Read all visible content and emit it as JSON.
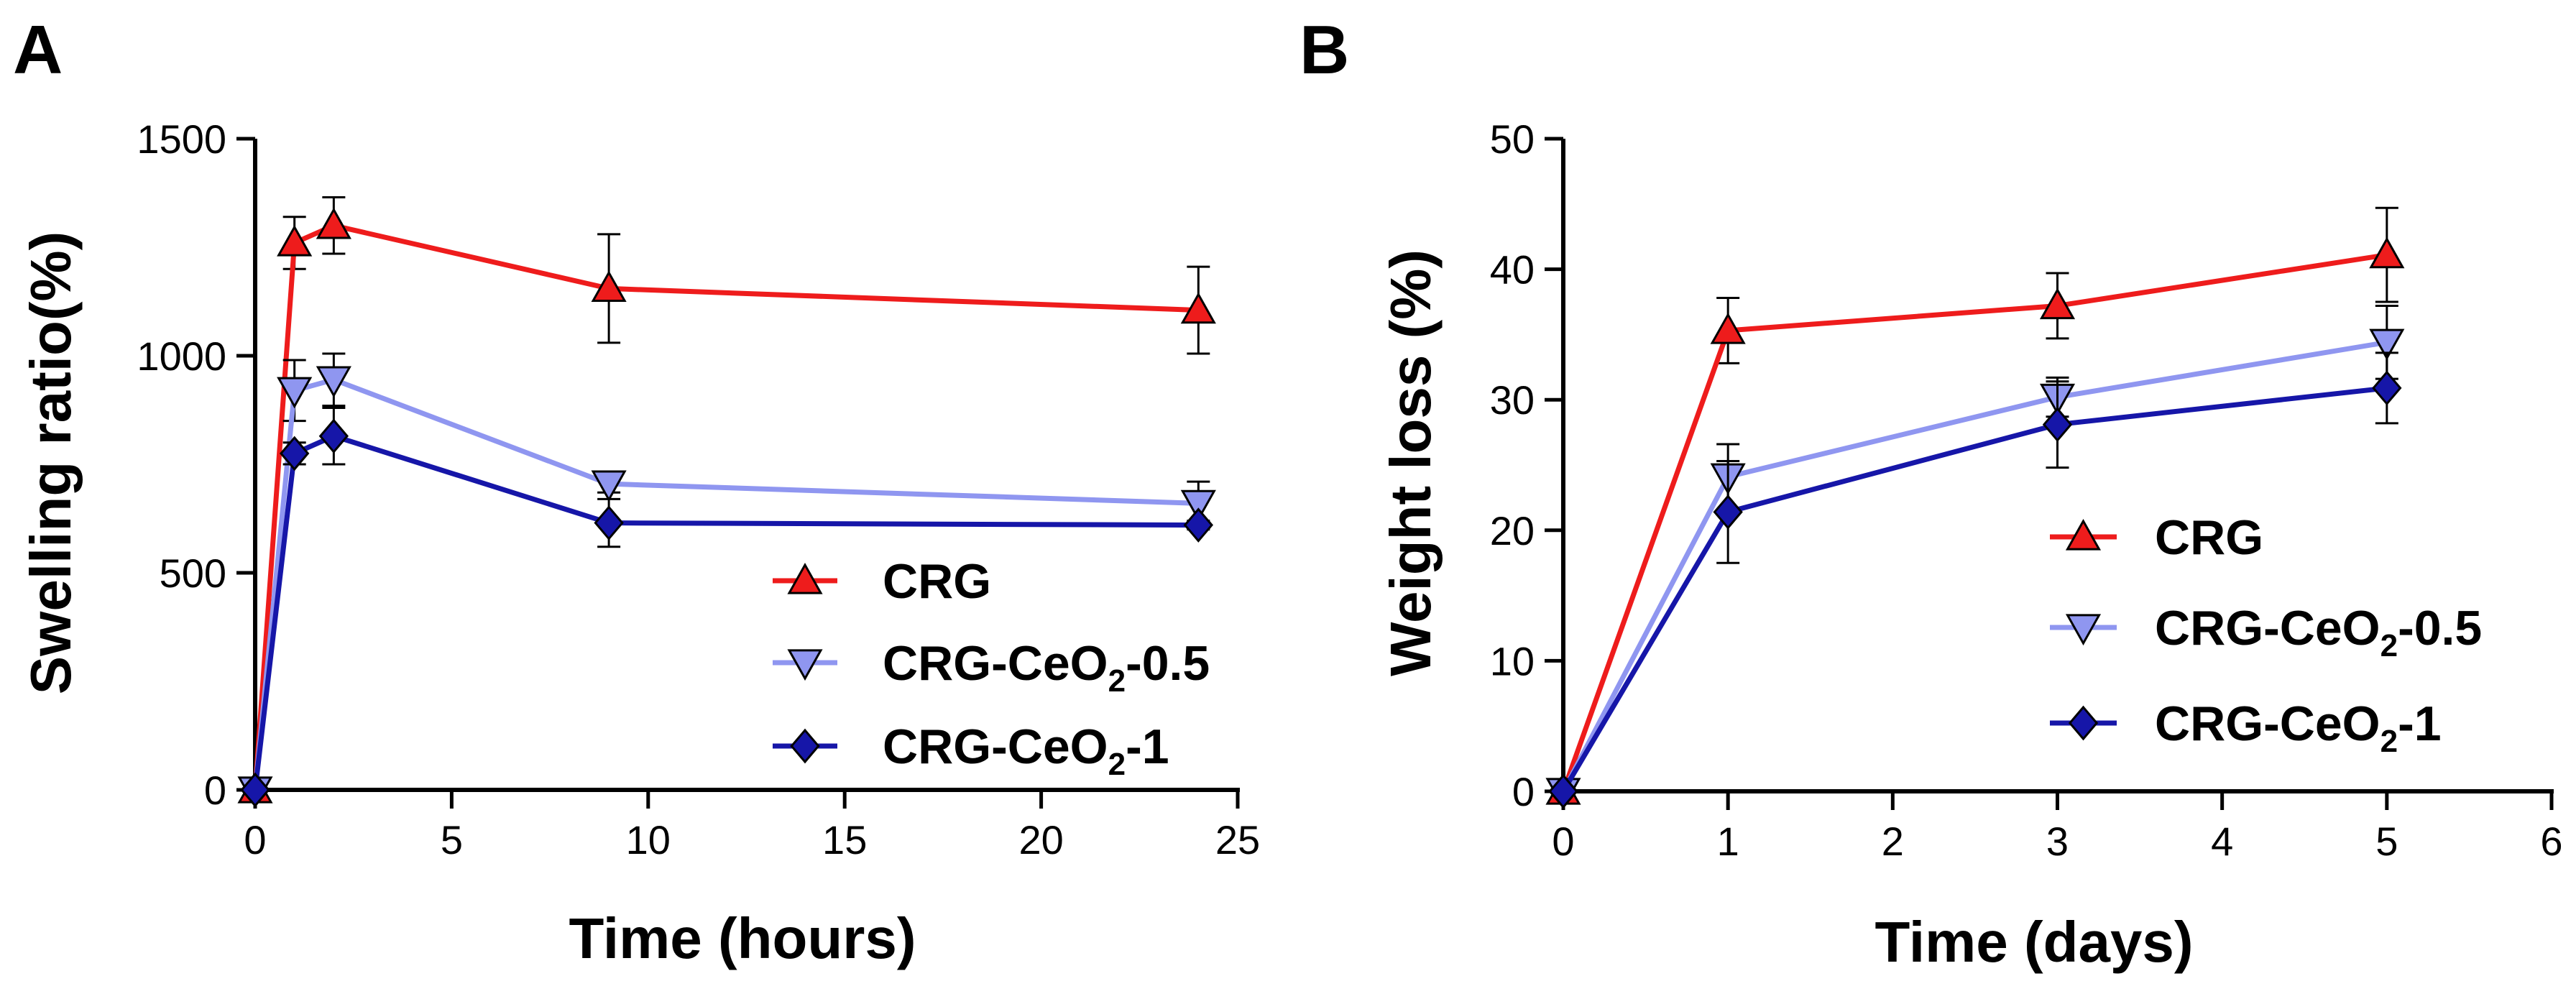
{
  "chart_data": [
    {
      "panel": "A",
      "type": "line",
      "title": "",
      "xlabel": "Time (hours)",
      "ylabel": "Swelling ratio(%)",
      "xlim": [
        0,
        25
      ],
      "ylim": [
        0,
        1500
      ],
      "xticks": [
        0,
        5,
        10,
        15,
        20,
        25
      ],
      "yticks": [
        0,
        500,
        1000,
        1500
      ],
      "x": [
        0,
        1,
        2,
        9,
        24
      ],
      "series": [
        {
          "name": "CRG",
          "name_main": "CRG",
          "name_sub": "",
          "name_tail": "",
          "color": "#ee1c1c",
          "marker": "triangle-up",
          "values": [
            0,
            1260,
            1300,
            1155,
            1105
          ],
          "errors": [
            0,
            60,
            65,
            125,
            100
          ]
        },
        {
          "name": "CRG-CeO2-0.5",
          "name_main": "CRG-CeO",
          "name_sub": "2",
          "name_tail": "-0.5",
          "color": "#8f96f0",
          "marker": "triangle-down",
          "values": [
            0,
            920,
            945,
            705,
            660
          ],
          "errors": [
            0,
            70,
            60,
            20,
            50
          ]
        },
        {
          "name": "CRG-CeO2-1",
          "name_main": "CRG-CeO",
          "name_sub": "2",
          "name_tail": "-1",
          "color": "#1616a8",
          "marker": "diamond",
          "values": [
            0,
            775,
            815,
            615,
            610
          ],
          "errors": [
            0,
            25,
            65,
            55,
            10
          ]
        }
      ],
      "legend_position": "lower-right",
      "grid": false
    },
    {
      "panel": "B",
      "type": "line",
      "title": "",
      "xlabel": "Time (days)",
      "ylabel": "Weight loss (%)",
      "xlim": [
        0,
        6
      ],
      "ylim": [
        0,
        50
      ],
      "xticks": [
        0,
        1,
        2,
        3,
        4,
        5,
        6
      ],
      "yticks": [
        0,
        10,
        20,
        30,
        40,
        50
      ],
      "x": [
        0,
        1,
        3,
        5
      ],
      "series": [
        {
          "name": "CRG",
          "name_main": "CRG",
          "name_sub": "",
          "name_tail": "",
          "color": "#ee1c1c",
          "marker": "triangle-up",
          "values": [
            0,
            35.3,
            37.2,
            41.1
          ],
          "errors": [
            0,
            2.5,
            2.5,
            3.6
          ]
        },
        {
          "name": "CRG-CeO2-0.5",
          "name_main": "CRG-CeO",
          "name_sub": "2",
          "name_tail": "-0.5",
          "color": "#8f96f0",
          "marker": "triangle-down",
          "values": [
            0,
            24.1,
            30.2,
            34.4
          ],
          "errors": [
            0,
            2.5,
            1.5,
            2.8
          ]
        },
        {
          "name": "CRG-CeO2-1",
          "name_main": "CRG-CeO",
          "name_sub": "2",
          "name_tail": "-1",
          "color": "#1616a8",
          "marker": "diamond",
          "values": [
            0,
            21.4,
            28.1,
            30.9
          ],
          "errors": [
            0,
            3.9,
            3.3,
            2.7
          ]
        }
      ],
      "legend_position": "lower-right",
      "grid": false
    }
  ]
}
